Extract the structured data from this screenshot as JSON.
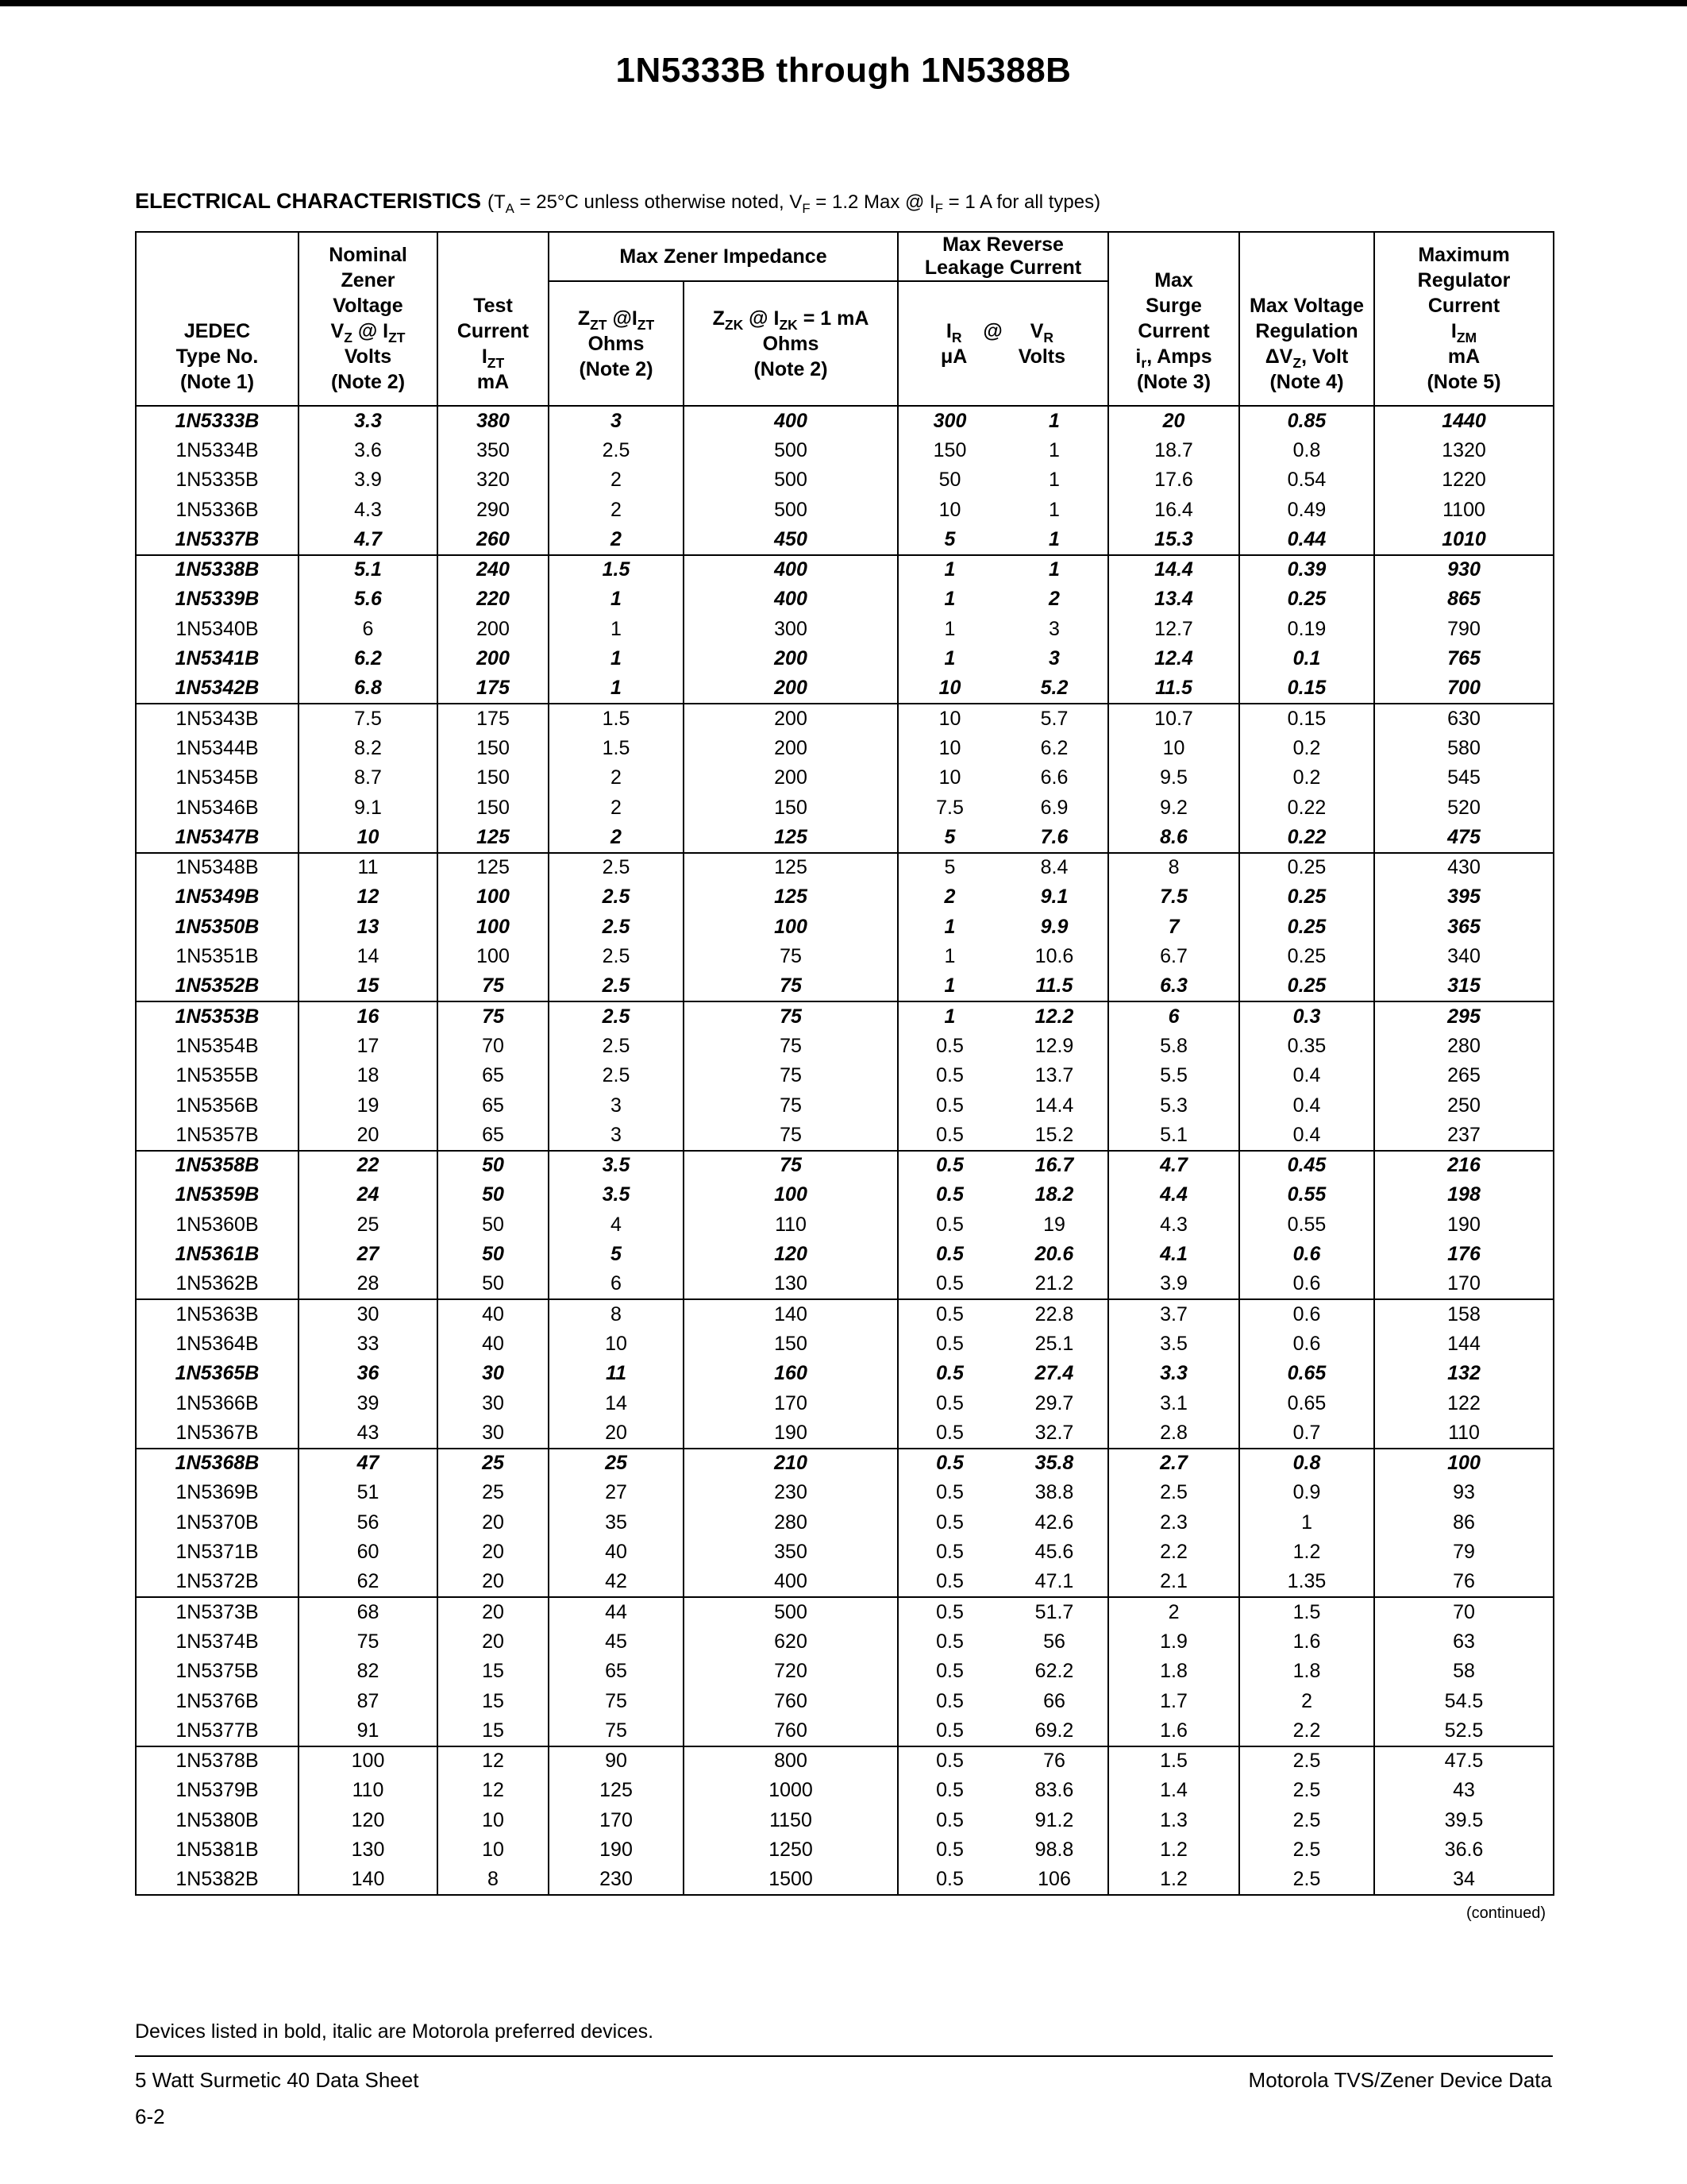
{
  "page": {
    "title": "1N5333B through 1N5388B",
    "section": {
      "heading": "ELECTRICAL CHARACTERISTICS",
      "conditions": "(T_{A} = 25°C unless otherwise noted, V_{F} = 1.2 Max @ I_{F} = 1 A for all types)"
    },
    "continued": "(continued)",
    "preferred_note": "Devices listed in bold, italic are Motorola preferred devices.",
    "footer": {
      "left": "5 Watt Surmetic 40 Data Sheet",
      "right": "Motorola TVS/Zener Device Data",
      "page_number": "6-2"
    }
  },
  "table": {
    "headers": {
      "jedec": "JEDEC\nType No.\n(Note 1)",
      "nominal": "Nominal\nZener\nVoltage\nV_{Z} @ I_{ZT}\nVolts\n(Note 2)",
      "test": "Test\nCurrent\nI_{ZT}\nmA",
      "impedance_group": "Max Zener Impedance",
      "zzt": "Z_{ZT} @I_{ZT}\nOhms\n(Note 2)",
      "zzk": "Z_{ZK} @ I_{ZK} = 1 mA\nOhms\n(Note 2)",
      "leakage_group": "Max Reverse\nLeakage Current",
      "ir": "I_{R}",
      "ir_unit": "μA",
      "at": "@",
      "vr": "V_{R}",
      "vr_unit": "Volts",
      "surge": "Max\nSurge\nCurrent\ni_{r}, Amps\n(Note 3)",
      "regulation": "Max Voltage\nRegulation\nΔV_{Z}, Volt\n(Note 4)",
      "izm": "Maximum\nRegulator\nCurrent\nI_{ZM}\nmA\n(Note 5)"
    },
    "groups": [
      [
        {
          "preferred": true,
          "cells": [
            "1N5333B",
            "3.3",
            "380",
            "3",
            "400",
            "300",
            "1",
            "20",
            "0.85",
            "1440"
          ]
        },
        {
          "preferred": false,
          "cells": [
            "1N5334B",
            "3.6",
            "350",
            "2.5",
            "500",
            "150",
            "1",
            "18.7",
            "0.8",
            "1320"
          ]
        },
        {
          "preferred": false,
          "cells": [
            "1N5335B",
            "3.9",
            "320",
            "2",
            "500",
            "50",
            "1",
            "17.6",
            "0.54",
            "1220"
          ]
        },
        {
          "preferred": false,
          "cells": [
            "1N5336B",
            "4.3",
            "290",
            "2",
            "500",
            "10",
            "1",
            "16.4",
            "0.49",
            "1100"
          ]
        },
        {
          "preferred": true,
          "cells": [
            "1N5337B",
            "4.7",
            "260",
            "2",
            "450",
            "5",
            "1",
            "15.3",
            "0.44",
            "1010"
          ]
        }
      ],
      [
        {
          "preferred": true,
          "cells": [
            "1N5338B",
            "5.1",
            "240",
            "1.5",
            "400",
            "1",
            "1",
            "14.4",
            "0.39",
            "930"
          ]
        },
        {
          "preferred": true,
          "cells": [
            "1N5339B",
            "5.6",
            "220",
            "1",
            "400",
            "1",
            "2",
            "13.4",
            "0.25",
            "865"
          ]
        },
        {
          "preferred": false,
          "cells": [
            "1N5340B",
            "6",
            "200",
            "1",
            "300",
            "1",
            "3",
            "12.7",
            "0.19",
            "790"
          ]
        },
        {
          "preferred": true,
          "cells": [
            "1N5341B",
            "6.2",
            "200",
            "1",
            "200",
            "1",
            "3",
            "12.4",
            "0.1",
            "765"
          ]
        },
        {
          "preferred": true,
          "cells": [
            "1N5342B",
            "6.8",
            "175",
            "1",
            "200",
            "10",
            "5.2",
            "11.5",
            "0.15",
            "700"
          ]
        }
      ],
      [
        {
          "preferred": false,
          "cells": [
            "1N5343B",
            "7.5",
            "175",
            "1.5",
            "200",
            "10",
            "5.7",
            "10.7",
            "0.15",
            "630"
          ]
        },
        {
          "preferred": false,
          "cells": [
            "1N5344B",
            "8.2",
            "150",
            "1.5",
            "200",
            "10",
            "6.2",
            "10",
            "0.2",
            "580"
          ]
        },
        {
          "preferred": false,
          "cells": [
            "1N5345B",
            "8.7",
            "150",
            "2",
            "200",
            "10",
            "6.6",
            "9.5",
            "0.2",
            "545"
          ]
        },
        {
          "preferred": false,
          "cells": [
            "1N5346B",
            "9.1",
            "150",
            "2",
            "150",
            "7.5",
            "6.9",
            "9.2",
            "0.22",
            "520"
          ]
        },
        {
          "preferred": true,
          "cells": [
            "1N5347B",
            "10",
            "125",
            "2",
            "125",
            "5",
            "7.6",
            "8.6",
            "0.22",
            "475"
          ]
        }
      ],
      [
        {
          "preferred": false,
          "cells": [
            "1N5348B",
            "11",
            "125",
            "2.5",
            "125",
            "5",
            "8.4",
            "8",
            "0.25",
            "430"
          ]
        },
        {
          "preferred": true,
          "cells": [
            "1N5349B",
            "12",
            "100",
            "2.5",
            "125",
            "2",
            "9.1",
            "7.5",
            "0.25",
            "395"
          ]
        },
        {
          "preferred": true,
          "cells": [
            "1N5350B",
            "13",
            "100",
            "2.5",
            "100",
            "1",
            "9.9",
            "7",
            "0.25",
            "365"
          ]
        },
        {
          "preferred": false,
          "cells": [
            "1N5351B",
            "14",
            "100",
            "2.5",
            "75",
            "1",
            "10.6",
            "6.7",
            "0.25",
            "340"
          ]
        },
        {
          "preferred": true,
          "cells": [
            "1N5352B",
            "15",
            "75",
            "2.5",
            "75",
            "1",
            "11.5",
            "6.3",
            "0.25",
            "315"
          ]
        }
      ],
      [
        {
          "preferred": true,
          "cells": [
            "1N5353B",
            "16",
            "75",
            "2.5",
            "75",
            "1",
            "12.2",
            "6",
            "0.3",
            "295"
          ]
        },
        {
          "preferred": false,
          "cells": [
            "1N5354B",
            "17",
            "70",
            "2.5",
            "75",
            "0.5",
            "12.9",
            "5.8",
            "0.35",
            "280"
          ]
        },
        {
          "preferred": false,
          "cells": [
            "1N5355B",
            "18",
            "65",
            "2.5",
            "75",
            "0.5",
            "13.7",
            "5.5",
            "0.4",
            "265"
          ]
        },
        {
          "preferred": false,
          "cells": [
            "1N5356B",
            "19",
            "65",
            "3",
            "75",
            "0.5",
            "14.4",
            "5.3",
            "0.4",
            "250"
          ]
        },
        {
          "preferred": false,
          "cells": [
            "1N5357B",
            "20",
            "65",
            "3",
            "75",
            "0.5",
            "15.2",
            "5.1",
            "0.4",
            "237"
          ]
        }
      ],
      [
        {
          "preferred": true,
          "cells": [
            "1N5358B",
            "22",
            "50",
            "3.5",
            "75",
            "0.5",
            "16.7",
            "4.7",
            "0.45",
            "216"
          ]
        },
        {
          "preferred": true,
          "cells": [
            "1N5359B",
            "24",
            "50",
            "3.5",
            "100",
            "0.5",
            "18.2",
            "4.4",
            "0.55",
            "198"
          ]
        },
        {
          "preferred": false,
          "cells": [
            "1N5360B",
            "25",
            "50",
            "4",
            "110",
            "0.5",
            "19",
            "4.3",
            "0.55",
            "190"
          ]
        },
        {
          "preferred": true,
          "cells": [
            "1N5361B",
            "27",
            "50",
            "5",
            "120",
            "0.5",
            "20.6",
            "4.1",
            "0.6",
            "176"
          ]
        },
        {
          "preferred": false,
          "cells": [
            "1N5362B",
            "28",
            "50",
            "6",
            "130",
            "0.5",
            "21.2",
            "3.9",
            "0.6",
            "170"
          ]
        }
      ],
      [
        {
          "preferred": false,
          "cells": [
            "1N5363B",
            "30",
            "40",
            "8",
            "140",
            "0.5",
            "22.8",
            "3.7",
            "0.6",
            "158"
          ]
        },
        {
          "preferred": false,
          "cells": [
            "1N5364B",
            "33",
            "40",
            "10",
            "150",
            "0.5",
            "25.1",
            "3.5",
            "0.6",
            "144"
          ]
        },
        {
          "preferred": true,
          "cells": [
            "1N5365B",
            "36",
            "30",
            "11",
            "160",
            "0.5",
            "27.4",
            "3.3",
            "0.65",
            "132"
          ]
        },
        {
          "preferred": false,
          "cells": [
            "1N5366B",
            "39",
            "30",
            "14",
            "170",
            "0.5",
            "29.7",
            "3.1",
            "0.65",
            "122"
          ]
        },
        {
          "preferred": false,
          "cells": [
            "1N5367B",
            "43",
            "30",
            "20",
            "190",
            "0.5",
            "32.7",
            "2.8",
            "0.7",
            "110"
          ]
        }
      ],
      [
        {
          "preferred": true,
          "cells": [
            "1N5368B",
            "47",
            "25",
            "25",
            "210",
            "0.5",
            "35.8",
            "2.7",
            "0.8",
            "100"
          ]
        },
        {
          "preferred": false,
          "cells": [
            "1N5369B",
            "51",
            "25",
            "27",
            "230",
            "0.5",
            "38.8",
            "2.5",
            "0.9",
            "93"
          ]
        },
        {
          "preferred": false,
          "cells": [
            "1N5370B",
            "56",
            "20",
            "35",
            "280",
            "0.5",
            "42.6",
            "2.3",
            "1",
            "86"
          ]
        },
        {
          "preferred": false,
          "cells": [
            "1N5371B",
            "60",
            "20",
            "40",
            "350",
            "0.5",
            "45.6",
            "2.2",
            "1.2",
            "79"
          ]
        },
        {
          "preferred": false,
          "cells": [
            "1N5372B",
            "62",
            "20",
            "42",
            "400",
            "0.5",
            "47.1",
            "2.1",
            "1.35",
            "76"
          ]
        }
      ],
      [
        {
          "preferred": false,
          "cells": [
            "1N5373B",
            "68",
            "20",
            "44",
            "500",
            "0.5",
            "51.7",
            "2",
            "1.5",
            "70"
          ]
        },
        {
          "preferred": false,
          "cells": [
            "1N5374B",
            "75",
            "20",
            "45",
            "620",
            "0.5",
            "56",
            "1.9",
            "1.6",
            "63"
          ]
        },
        {
          "preferred": false,
          "cells": [
            "1N5375B",
            "82",
            "15",
            "65",
            "720",
            "0.5",
            "62.2",
            "1.8",
            "1.8",
            "58"
          ]
        },
        {
          "preferred": false,
          "cells": [
            "1N5376B",
            "87",
            "15",
            "75",
            "760",
            "0.5",
            "66",
            "1.7",
            "2",
            "54.5"
          ]
        },
        {
          "preferred": false,
          "cells": [
            "1N5377B",
            "91",
            "15",
            "75",
            "760",
            "0.5",
            "69.2",
            "1.6",
            "2.2",
            "52.5"
          ]
        }
      ],
      [
        {
          "preferred": false,
          "cells": [
            "1N5378B",
            "100",
            "12",
            "90",
            "800",
            "0.5",
            "76",
            "1.5",
            "2.5",
            "47.5"
          ]
        },
        {
          "preferred": false,
          "cells": [
            "1N5379B",
            "110",
            "12",
            "125",
            "1000",
            "0.5",
            "83.6",
            "1.4",
            "2.5",
            "43"
          ]
        },
        {
          "preferred": false,
          "cells": [
            "1N5380B",
            "120",
            "10",
            "170",
            "1150",
            "0.5",
            "91.2",
            "1.3",
            "2.5",
            "39.5"
          ]
        },
        {
          "preferred": false,
          "cells": [
            "1N5381B",
            "130",
            "10",
            "190",
            "1250",
            "0.5",
            "98.8",
            "1.2",
            "2.5",
            "36.6"
          ]
        },
        {
          "preferred": false,
          "cells": [
            "1N5382B",
            "140",
            "8",
            "230",
            "1500",
            "0.5",
            "106",
            "1.2",
            "2.5",
            "34"
          ]
        }
      ]
    ]
  }
}
